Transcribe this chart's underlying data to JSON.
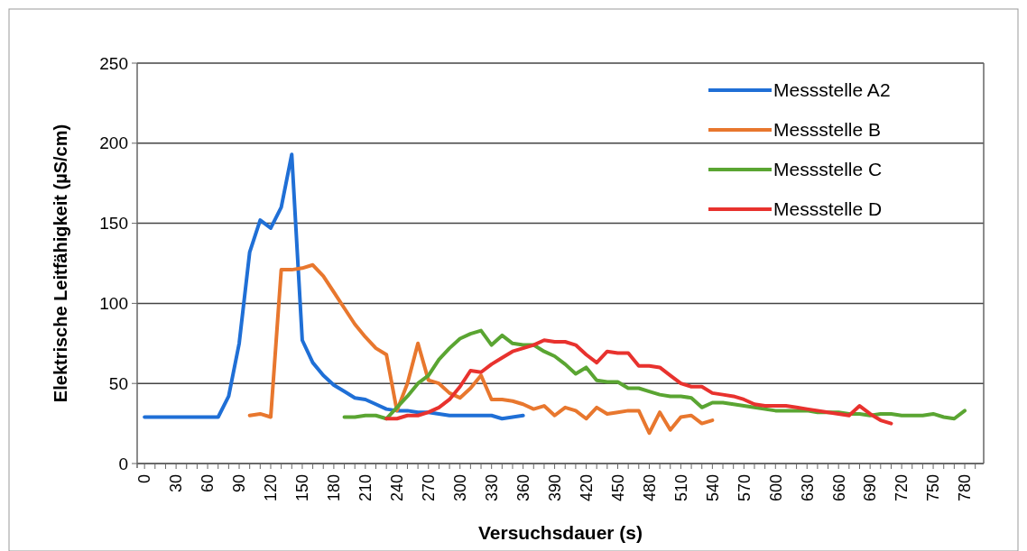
{
  "chart_data": {
    "type": "line",
    "xlabel": "Versuchsdauer (s)",
    "ylabel": "Elektrische Leitfähigkeit (µS/cm)",
    "xlim": [
      -7,
      798
    ],
    "ylim": [
      0,
      250
    ],
    "yticks": [
      0,
      50,
      100,
      150,
      200,
      250
    ],
    "xticks": [
      0,
      {
        "value": 10,
        "label": null
      },
      {
        "value": 20,
        "label": null
      },
      30,
      {
        "value": 40,
        "label": null
      },
      {
        "value": 50,
        "label": null
      },
      60,
      {
        "value": 70,
        "label": null
      },
      {
        "value": 80,
        "label": null
      },
      90,
      {
        "value": 100,
        "label": null
      },
      {
        "value": 110,
        "label": null
      },
      120,
      {
        "value": 130,
        "label": null
      },
      {
        "value": 140,
        "label": null
      },
      150,
      {
        "value": 160,
        "label": null
      },
      {
        "value": 170,
        "label": null
      },
      180,
      {
        "value": 190,
        "label": null
      },
      {
        "value": 200,
        "label": null
      },
      210,
      {
        "value": 220,
        "label": null
      },
      {
        "value": 230,
        "label": null
      },
      240,
      {
        "value": 250,
        "label": null
      },
      {
        "value": 260,
        "label": null
      },
      270,
      {
        "value": 280,
        "label": null
      },
      {
        "value": 290,
        "label": null
      },
      300,
      {
        "value": 310,
        "label": null
      },
      {
        "value": 320,
        "label": null
      },
      330,
      {
        "value": 340,
        "label": null
      },
      {
        "value": 350,
        "label": null
      },
      360,
      {
        "value": 370,
        "label": null
      },
      {
        "value": 380,
        "label": null
      },
      390,
      {
        "value": 400,
        "label": null
      },
      {
        "value": 410,
        "label": null
      },
      420,
      {
        "value": 430,
        "label": null
      },
      {
        "value": 440,
        "label": null
      },
      450,
      {
        "value": 460,
        "label": null
      },
      {
        "value": 470,
        "label": null
      },
      480,
      {
        "value": 490,
        "label": null
      },
      {
        "value": 500,
        "label": null
      },
      510,
      {
        "value": 520,
        "label": null
      },
      {
        "value": 530,
        "label": null
      },
      540,
      {
        "value": 550,
        "label": null
      },
      {
        "value": 560,
        "label": null
      },
      570,
      {
        "value": 580,
        "label": null
      },
      {
        "value": 590,
        "label": null
      },
      600,
      {
        "value": 610,
        "label": null
      },
      {
        "value": 620,
        "label": null
      },
      630,
      {
        "value": 640,
        "label": null
      },
      {
        "value": 650,
        "label": null
      },
      660,
      {
        "value": 670,
        "label": null
      },
      {
        "value": 680,
        "label": null
      },
      690,
      {
        "value": 700,
        "label": null
      },
      {
        "value": 710,
        "label": null
      },
      720,
      {
        "value": 730,
        "label": null
      },
      {
        "value": 740,
        "label": null
      },
      750,
      {
        "value": 760,
        "label": null
      },
      {
        "value": 770,
        "label": null
      },
      780,
      {
        "value": 790,
        "label": null
      }
    ],
    "grid": "y",
    "legend": "top right",
    "line_style": "solid",
    "series": [
      {
        "name": "Messstelle A2",
        "color": "#1f6fd6",
        "x": [
          0,
          10,
          20,
          30,
          40,
          50,
          60,
          70,
          80,
          90,
          100,
          110,
          120,
          130,
          140,
          150,
          160,
          170,
          180,
          190,
          200,
          210,
          220,
          230,
          240,
          250,
          260,
          270,
          280,
          290,
          300,
          310,
          320,
          330,
          340,
          350,
          360
        ],
        "values": [
          29,
          29,
          29,
          29,
          29,
          29,
          29,
          29,
          42,
          75,
          132,
          152,
          147,
          160,
          193,
          77,
          63,
          55,
          49,
          45,
          41,
          40,
          37,
          34,
          33,
          33,
          32,
          32,
          31,
          30,
          30,
          30,
          30,
          30,
          28,
          29,
          30
        ]
      },
      {
        "name": "Messstelle B",
        "color": "#e8772e",
        "x": [
          100,
          110,
          120,
          130,
          140,
          150,
          160,
          170,
          180,
          190,
          200,
          210,
          220,
          230,
          240,
          250,
          260,
          270,
          280,
          290,
          300,
          310,
          320,
          330,
          340,
          350,
          360,
          370,
          380,
          390,
          400,
          410,
          420,
          430,
          440,
          450,
          460,
          470,
          480,
          490,
          500,
          510,
          520,
          530,
          540
        ],
        "values": [
          30,
          31,
          29,
          121,
          121,
          122,
          124,
          117,
          107,
          97,
          87,
          79,
          72,
          68,
          33,
          50,
          75,
          52,
          50,
          44,
          41,
          47,
          55,
          40,
          40,
          39,
          37,
          34,
          36,
          30,
          35,
          33,
          28,
          35,
          31,
          32,
          33,
          33,
          19,
          32,
          21,
          29,
          30,
          25,
          27
        ]
      },
      {
        "name": "Messstelle C",
        "color": "#5aa532",
        "x": [
          190,
          200,
          210,
          220,
          230,
          240,
          250,
          260,
          270,
          280,
          290,
          300,
          310,
          320,
          330,
          340,
          350,
          360,
          370,
          380,
          390,
          400,
          410,
          420,
          430,
          440,
          450,
          460,
          470,
          480,
          490,
          500,
          510,
          520,
          530,
          540,
          550,
          560,
          570,
          580,
          590,
          600,
          610,
          620,
          630,
          640,
          650,
          660,
          670,
          680,
          690,
          700,
          710,
          720,
          730,
          740,
          750,
          760,
          770,
          780
        ],
        "values": [
          29,
          29,
          30,
          30,
          28,
          35,
          42,
          50,
          55,
          65,
          72,
          78,
          81,
          83,
          74,
          80,
          75,
          74,
          74,
          70,
          67,
          62,
          56,
          60,
          52,
          51,
          51,
          47,
          47,
          45,
          43,
          42,
          42,
          41,
          35,
          38,
          38,
          37,
          36,
          35,
          34,
          33,
          33,
          33,
          33,
          32,
          32,
          32,
          31,
          31,
          30,
          31,
          31,
          30,
          30,
          30,
          31,
          29,
          28,
          33
        ]
      },
      {
        "name": "Messstelle D",
        "color": "#e8322e",
        "x": [
          230,
          240,
          250,
          260,
          270,
          280,
          290,
          300,
          310,
          320,
          330,
          340,
          350,
          360,
          370,
          380,
          390,
          400,
          410,
          420,
          430,
          440,
          450,
          460,
          470,
          480,
          490,
          500,
          510,
          520,
          530,
          540,
          550,
          560,
          570,
          580,
          590,
          600,
          610,
          620,
          630,
          640,
          650,
          660,
          670,
          680,
          690,
          700,
          710
        ],
        "values": [
          28,
          28,
          30,
          30,
          32,
          35,
          40,
          48,
          58,
          57,
          62,
          66,
          70,
          72,
          74,
          77,
          76,
          76,
          74,
          68,
          63,
          70,
          69,
          69,
          61,
          61,
          60,
          55,
          50,
          48,
          48,
          44,
          43,
          42,
          40,
          37,
          36,
          36,
          36,
          35,
          34,
          33,
          32,
          31,
          30,
          36,
          31,
          27,
          25
        ]
      }
    ]
  }
}
